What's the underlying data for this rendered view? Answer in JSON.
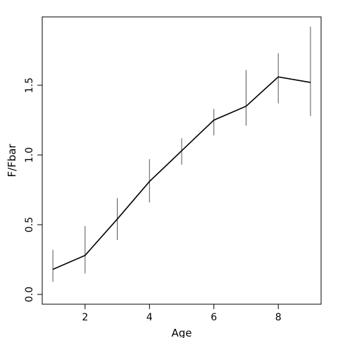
{
  "chart_data": {
    "type": "line",
    "title": "",
    "xlabel": "Age",
    "ylabel": "F/Fbar",
    "x": [
      1,
      2,
      3,
      4,
      5,
      6,
      7,
      8,
      9
    ],
    "series": [
      {
        "values": [
          0.18,
          0.28,
          0.54,
          0.81,
          1.03,
          1.25,
          1.35,
          1.56,
          1.52
        ],
        "lower": [
          0.09,
          0.15,
          0.39,
          0.66,
          0.93,
          1.14,
          1.21,
          1.37,
          1.28
        ],
        "upper": [
          0.32,
          0.49,
          0.69,
          0.97,
          1.12,
          1.33,
          1.61,
          1.73,
          1.92
        ]
      }
    ],
    "x_ticks": [
      "2",
      "4",
      "6",
      "8"
    ],
    "y_ticks": [
      "0.0",
      "0.5",
      "1.0",
      "1.5"
    ],
    "xlim": [
      0.67,
      9.33
    ],
    "ylim": [
      -0.07,
      1.99
    ],
    "grid": false,
    "colors": {
      "line": "#000000",
      "error_bar": "#555555",
      "axis": "#000000"
    }
  }
}
